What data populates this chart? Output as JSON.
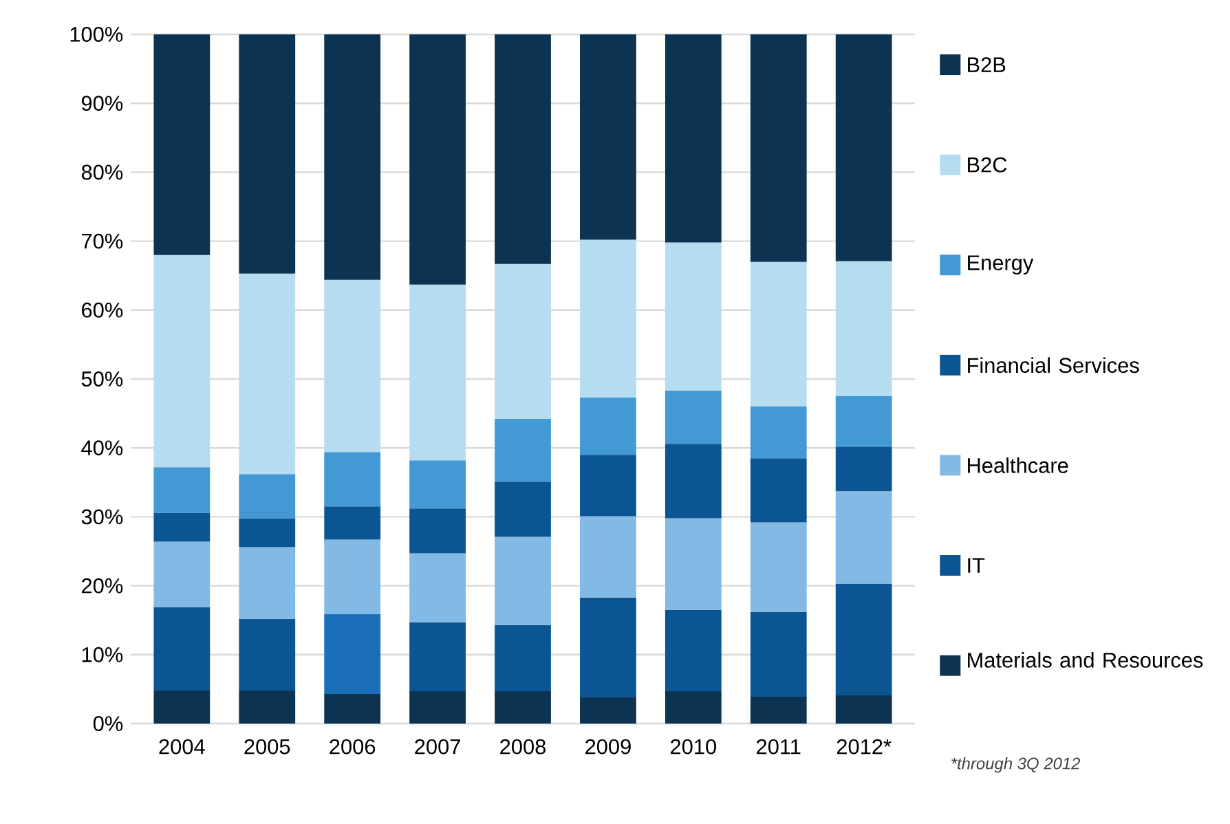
{
  "chart_data": {
    "type": "bar",
    "stacked": true,
    "categories": [
      "2004",
      "2005",
      "2006",
      "2007",
      "2008",
      "2009",
      "2010",
      "2011",
      "2012*"
    ],
    "series": [
      {
        "name": "Materials and Resources",
        "color": "#0d3352",
        "values": [
          4.8,
          4.8,
          4.3,
          4.7,
          4.7,
          3.8,
          4.7,
          3.9,
          4.1
        ]
      },
      {
        "name": "IT",
        "color": "#0b5592",
        "colors": [
          "#0b5592",
          "#0b5592",
          "#1a6fb8",
          "#0b5592",
          "#0b5592",
          "#0b5592",
          "#0b5592",
          "#0b5592",
          "#0b5592"
        ],
        "values": [
          12.1,
          10.4,
          11.6,
          10.0,
          9.6,
          14.5,
          11.8,
          12.3,
          16.2
        ]
      },
      {
        "name": "Healthcare",
        "color": "#82b9e5",
        "values": [
          9.5,
          10.4,
          10.8,
          10.0,
          12.8,
          11.8,
          13.3,
          13.0,
          13.4
        ]
      },
      {
        "name": "Financial Services",
        "color": "#0b5592",
        "values": [
          4.2,
          4.2,
          4.8,
          6.5,
          8.0,
          8.9,
          10.8,
          9.3,
          6.5
        ]
      },
      {
        "name": "Energy",
        "color": "#4299d3",
        "values": [
          6.6,
          6.4,
          7.9,
          7.0,
          9.1,
          8.3,
          7.7,
          7.5,
          7.3
        ]
      },
      {
        "name": "B2C",
        "color": "#b6dcf2",
        "values": [
          30.8,
          29.1,
          25.0,
          25.5,
          22.5,
          22.9,
          21.5,
          21.0,
          19.6
        ]
      },
      {
        "name": "B2B",
        "color": "#0d3352",
        "values": [
          32.0,
          34.7,
          35.6,
          36.3,
          33.3,
          29.8,
          30.2,
          33.0,
          32.9
        ]
      }
    ],
    "ylim": [
      0,
      100
    ],
    "yticks": [
      {
        "value": 0,
        "label": "0%"
      },
      {
        "value": 10,
        "label": "10%"
      },
      {
        "value": 20,
        "label": "20%"
      },
      {
        "value": 30,
        "label": "30%"
      },
      {
        "value": 40,
        "label": "40%"
      },
      {
        "value": 50,
        "label": "50%"
      },
      {
        "value": 60,
        "label": "60%"
      },
      {
        "value": 70,
        "label": "70%"
      },
      {
        "value": 80,
        "label": "80%"
      },
      {
        "value": 90,
        "label": "90%"
      },
      {
        "value": 100,
        "label": "100%"
      }
    ],
    "grid": "y",
    "legend": "right",
    "annotations": [
      "*through 3Q 2012"
    ]
  }
}
